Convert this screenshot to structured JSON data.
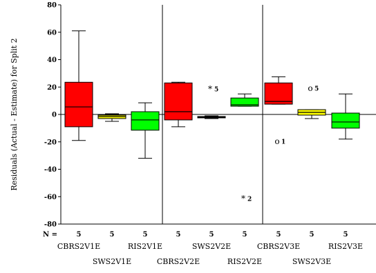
{
  "chart_data": {
    "type": "boxplot",
    "ylabel": "Residuals (Actual - Estimate) for Split 2",
    "ylim": [
      -80,
      80
    ],
    "yticks": [
      80,
      60,
      40,
      20,
      0,
      -20,
      -40,
      -60,
      -80
    ],
    "n_label": "N =",
    "panels": 3,
    "reference_line": 0,
    "series": [
      {
        "name": "CBRS2V1E",
        "n": "5",
        "color": "#ff0000",
        "panel": 0,
        "min": -19,
        "q1": -9,
        "median": 5.5,
        "q3": 23.5,
        "max": 61,
        "outliers": []
      },
      {
        "name": "SWS2V1E",
        "n": "5",
        "color": "#ffff00",
        "panel": 0,
        "min": -5,
        "q1": -3,
        "median": -1.5,
        "q3": -0.5,
        "max": 0.5,
        "outliers": []
      },
      {
        "name": "RIS2V1E",
        "n": "5",
        "color": "#00ff00",
        "panel": 0,
        "min": -32,
        "q1": -11.5,
        "median": -4,
        "q3": 2,
        "max": 8.5,
        "outliers": []
      },
      {
        "name": "CBRS2V2E",
        "n": "5",
        "color": "#ff0000",
        "panel": 1,
        "min": -9,
        "q1": -4,
        "median": 2,
        "q3": 23,
        "max": 23.5,
        "outliers": []
      },
      {
        "name": "SWS2V2E",
        "n": "5",
        "color": "#ffff00",
        "panel": 1,
        "min": -3,
        "q1": -2.5,
        "median": -2,
        "q3": -1.5,
        "max": -1,
        "outliers": [
          {
            "value": 18.5,
            "label": "5",
            "symbol": "*"
          }
        ]
      },
      {
        "name": "RIS2V2E",
        "n": "5",
        "color": "#00ff00",
        "panel": 1,
        "min": 6,
        "q1": 6,
        "median": 7,
        "q3": 12,
        "max": 15,
        "outliers": [
          {
            "value": -61.5,
            "label": "2",
            "symbol": "*"
          }
        ]
      },
      {
        "name": "CBRS2V3E",
        "n": "5",
        "color": "#ff0000",
        "panel": 2,
        "min": 7.5,
        "q1": 7.5,
        "median": 9.5,
        "q3": 23,
        "max": 27.5,
        "outliers": [
          {
            "value": -19.5,
            "label": "1",
            "symbol": "o"
          }
        ]
      },
      {
        "name": "SWS2V3E",
        "n": "5",
        "color": "#ffff00",
        "panel": 2,
        "min": -3,
        "q1": -0.5,
        "median": 1.5,
        "q3": 3.5,
        "max": 3.5,
        "outliers": [
          {
            "value": 19,
            "label": "5",
            "symbol": "o"
          }
        ]
      },
      {
        "name": "RIS2V3E",
        "n": "5",
        "color": "#00ff00",
        "panel": 2,
        "min": -18,
        "q1": -10,
        "median": -5.5,
        "q3": 1,
        "max": 15,
        "outliers": []
      }
    ]
  }
}
